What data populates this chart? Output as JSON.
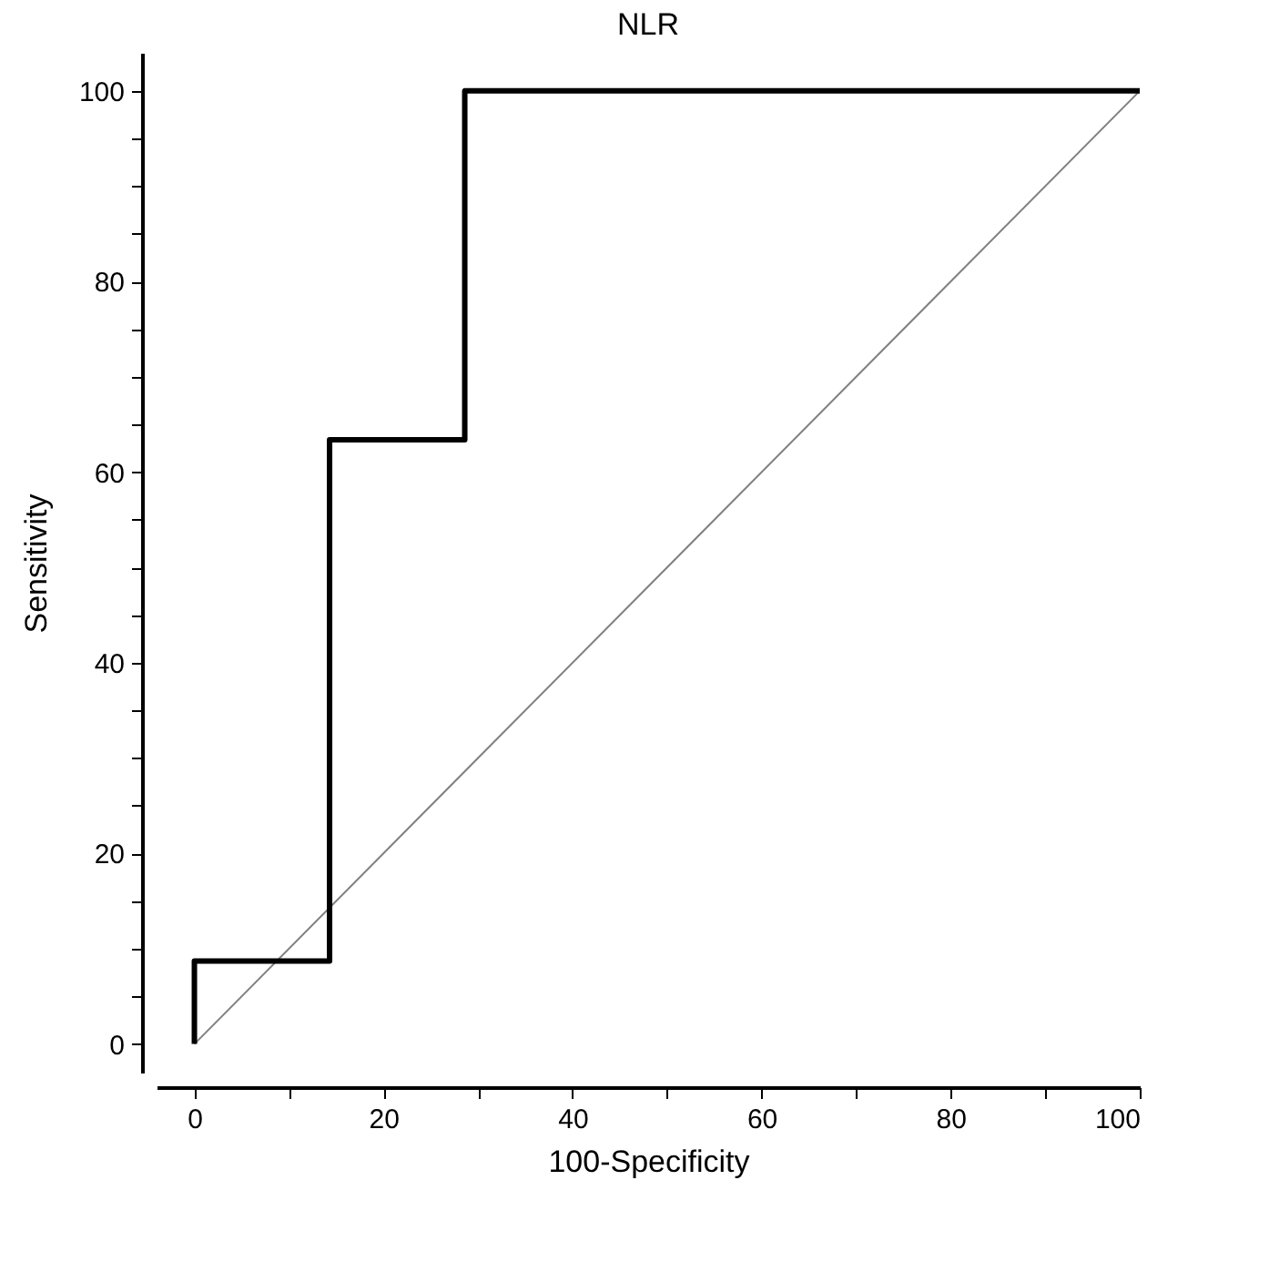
{
  "chart_data": {
    "type": "line",
    "title": "NLR",
    "xlabel": "100-Specificity",
    "ylabel": "Sensitivity",
    "xlim": [
      -4,
      100
    ],
    "ylim": [
      -3,
      104
    ],
    "xticks": [
      0,
      {
        "value": 10,
        "label": null
      },
      20,
      {
        "value": 30,
        "label": null
      },
      40,
      {
        "value": 50,
        "label": null
      },
      60,
      {
        "value": 70,
        "label": null
      },
      80,
      {
        "value": 90,
        "label": null
      },
      100
    ],
    "yticks": [
      0,
      {
        "value": 5,
        "label": null
      },
      {
        "value": 10,
        "label": null
      },
      {
        "value": 15,
        "label": null
      },
      20,
      {
        "value": 25,
        "label": null
      },
      {
        "value": 30,
        "label": null
      },
      {
        "value": 35,
        "label": null
      },
      40,
      {
        "value": 45,
        "label": null
      },
      {
        "value": 50,
        "label": null
      },
      {
        "value": 55,
        "label": null
      },
      60,
      {
        "value": 65,
        "label": null
      },
      {
        "value": 70,
        "label": null
      },
      {
        "value": 75,
        "label": null
      },
      80,
      {
        "value": 85,
        "label": null
      },
      {
        "value": 90,
        "label": null
      },
      {
        "value": 95,
        "label": null
      },
      100
    ],
    "grid": false,
    "marker": "none",
    "line_style": "solid",
    "series": [
      {
        "type": "line",
        "color": "#808080",
        "x": [
          0,
          100
        ],
        "values": [
          0,
          100
        ]
      },
      {
        "type": "step",
        "color": "#000000",
        "x": [
          0,
          0,
          14.3,
          28.6,
          100
        ],
        "values": [
          0,
          8.7,
          63.4,
          100,
          100
        ]
      }
    ]
  }
}
